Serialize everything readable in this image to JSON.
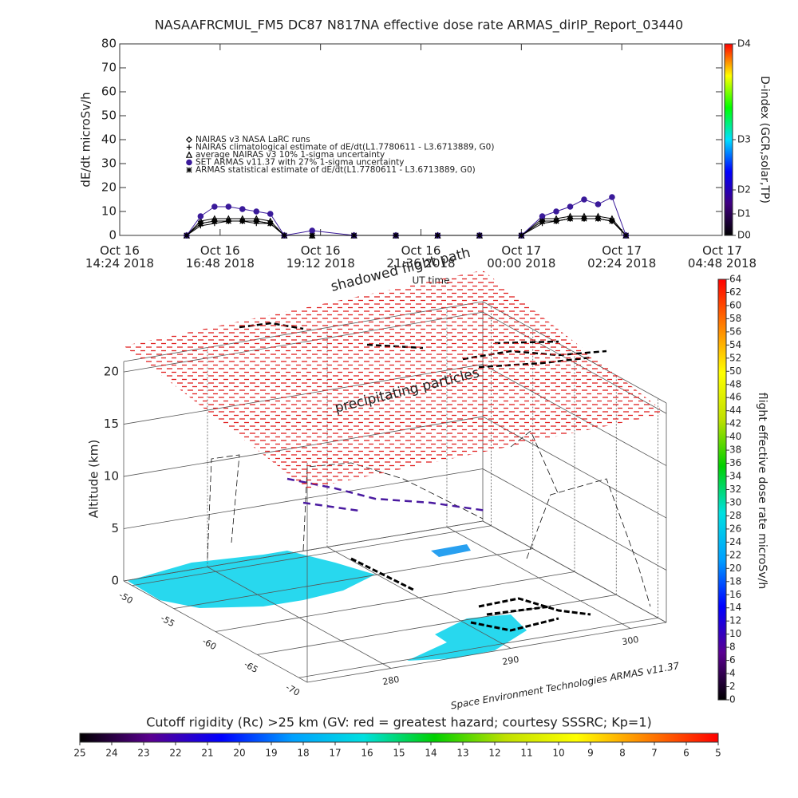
{
  "chart_data": [
    {
      "type": "line",
      "title": "NASAAFRCMUL_FM5 DC87 N817NA effective dose rate ARMAS_dirIP_Report_03440",
      "ylabel": "dE/dt microSv/h",
      "xlabel": "UT time",
      "x": [
        "2018-10-16T16:00",
        "2018-10-16T16:20",
        "2018-10-16T16:40",
        "2018-10-16T17:00",
        "2018-10-16T17:20",
        "2018-10-16T17:40",
        "2018-10-16T18:00",
        "2018-10-16T18:20",
        "2018-10-16T19:00",
        "2018-10-16T20:00",
        "2018-10-16T21:00",
        "2018-10-16T22:00",
        "2018-10-16T23:00",
        "2018-10-17T00:00",
        "2018-10-17T00:30",
        "2018-10-17T00:50",
        "2018-10-17T01:10",
        "2018-10-17T01:30",
        "2018-10-17T01:50",
        "2018-10-17T02:10",
        "2018-10-17T02:30"
      ],
      "series": [
        {
          "name": "NAIRAS v3 NASA LaRC runs",
          "marker": "diamond",
          "color": "#000000",
          "values": [
            0,
            5,
            6,
            6,
            6,
            6,
            5,
            0,
            0,
            0,
            0,
            0,
            0,
            0,
            6,
            6,
            7,
            7,
            7,
            6,
            0
          ]
        },
        {
          "name": "NAIRAS climatological estimate of dE/dt(L1.7780611 - L3.6713889, G0)",
          "marker": "plus",
          "color": "#000000",
          "values": [
            0,
            4,
            5,
            6,
            6,
            5,
            5,
            0,
            0,
            0,
            0,
            0,
            0,
            0,
            5,
            6,
            7,
            7,
            7,
            6,
            0
          ]
        },
        {
          "name": "average NAIRAS v3 10% 1-sigma uncertainty",
          "marker": "triangle",
          "color": "#000000",
          "values": [
            0,
            6,
            7,
            7,
            7,
            7,
            6,
            0,
            0,
            0,
            0,
            0,
            0,
            0,
            7,
            7,
            8,
            8,
            8,
            7,
            0
          ]
        },
        {
          "name": "SET ARMAS v11.37 with 27% 1-sigma uncertainty",
          "marker": "circle",
          "color": "#3a1a9a",
          "values": [
            0,
            8,
            12,
            12,
            11,
            10,
            9,
            0,
            2,
            0,
            0,
            0,
            0,
            0,
            8,
            10,
            12,
            15,
            13,
            16,
            0
          ]
        },
        {
          "name": "ARMAS statistical estimate of dE/dt(L1.7780611 - L3.6713889, G0)",
          "marker": "asterisk",
          "color": "#000000",
          "values": [
            0,
            5,
            6,
            6,
            6,
            6,
            5,
            0,
            0,
            0,
            0,
            0,
            0,
            0,
            6,
            6,
            7,
            7,
            7,
            6,
            0
          ]
        }
      ],
      "xlim": [
        "2018-10-16T14:24",
        "2018-10-17T04:48"
      ],
      "xticks": [
        {
          "value": "2018-10-16T14:24",
          "label": "Oct 16\n14:24 2018"
        },
        {
          "value": "2018-10-16T16:48",
          "label": "Oct 16\n16:48 2018"
        },
        {
          "value": "2018-10-16T19:12",
          "label": "Oct 16\n19:12 2018"
        },
        {
          "value": "2018-10-16T21:36",
          "label": "Oct 16\n21:36 2018"
        },
        {
          "value": "2018-10-17T00:00",
          "label": "Oct 17\n00:00 2018"
        },
        {
          "value": "2018-10-17T02:24",
          "label": "Oct 17\n02:24 2018"
        },
        {
          "value": "2018-10-17T04:48",
          "label": "Oct 17\n04:48 2018"
        }
      ],
      "ylim": [
        0,
        80
      ],
      "yticks": [
        0,
        10,
        20,
        30,
        40,
        50,
        60,
        70,
        80
      ],
      "colorbar": {
        "label": "D-index (GCR,solar,TP)",
        "lim": [
          0,
          80
        ],
        "ticks": [
          {
            "value": 0,
            "label": "D0"
          },
          {
            "value": 9,
            "label": "D1"
          },
          {
            "value": 19,
            "label": "D2"
          },
          {
            "value": 40,
            "label": "D3"
          },
          {
            "value": 80,
            "label": "D4"
          }
        ],
        "colors": [
          "#000000",
          "#400080",
          "#0000ff",
          "#00e0ff",
          "#00ff00",
          "#ffff00",
          "#ff0000"
        ]
      }
    },
    {
      "type": "scatter3d",
      "annotations": [
        "shadowed flight path",
        "precipitating particles",
        "Space Environment Technologies ARMAS v11.37"
      ],
      "zlabel": "Altitude (km)",
      "xlim": [
        273,
        303
      ],
      "xticks": [
        280,
        290,
        300
      ],
      "ylim": [
        -49,
        -71
      ],
      "yticks": [
        -50,
        -55,
        -60,
        -65,
        -70
      ],
      "zlim": [
        0,
        21
      ],
      "zticks": [
        0,
        5,
        10,
        15,
        20
      ],
      "colorbar": {
        "label": "flight effective dose rate microSv/h",
        "lim": [
          0,
          64
        ],
        "ticks": [
          0,
          2,
          4,
          6,
          8,
          10,
          12,
          14,
          16,
          18,
          20,
          22,
          24,
          26,
          28,
          30,
          32,
          34,
          36,
          38,
          40,
          42,
          44,
          46,
          48,
          50,
          52,
          54,
          56,
          58,
          60,
          62,
          64
        ],
        "colors": [
          "#000000",
          "#5a0090",
          "#0000ff",
          "#00a0ff",
          "#00e0e0",
          "#00d000",
          "#c0e000",
          "#ffff00",
          "#ff8000",
          "#ff0000"
        ]
      },
      "colorbar2": {
        "label": "Cutoff rigidity (Rc) >25 km (GV: red = greatest hazard; courtesy SSSRC; Kp=1)",
        "lim": [
          25,
          5
        ],
        "ticks": [
          25,
          24,
          23,
          22,
          21,
          20,
          19,
          18,
          17,
          16,
          15,
          14,
          13,
          12,
          11,
          10,
          9,
          8,
          7,
          6,
          5
        ],
        "colors": [
          "#000000",
          "#5a0090",
          "#0000ff",
          "#00a0ff",
          "#00e0e0",
          "#00d000",
          "#c0e000",
          "#ffff00",
          "#ff8000",
          "#ff0000"
        ]
      }
    }
  ]
}
